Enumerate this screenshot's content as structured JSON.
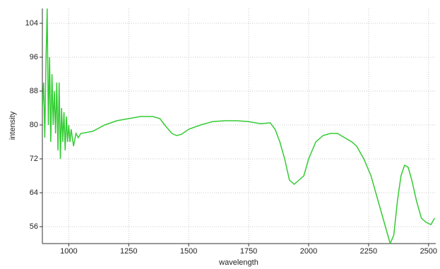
{
  "chart_data": {
    "type": "line",
    "x_label": "wavelength",
    "y_label": "intensity",
    "color": "#33cc33",
    "grid": true,
    "xlim": [
      890,
      2530
    ],
    "ylim": [
      52,
      107.5
    ],
    "xticks": [
      1000,
      1250,
      1500,
      1750,
      2000,
      2250,
      2500
    ],
    "yticks": [
      56,
      64,
      72,
      80,
      88,
      96,
      104
    ],
    "x": [
      890,
      895,
      900,
      905,
      910,
      915,
      920,
      925,
      930,
      935,
      940,
      945,
      950,
      955,
      960,
      965,
      970,
      975,
      980,
      985,
      990,
      995,
      1000,
      1005,
      1010,
      1020,
      1030,
      1040,
      1050,
      1100,
      1150,
      1200,
      1250,
      1300,
      1350,
      1380,
      1400,
      1430,
      1450,
      1470,
      1500,
      1550,
      1600,
      1650,
      1700,
      1750,
      1800,
      1840,
      1860,
      1880,
      1900,
      1920,
      1940,
      1960,
      1980,
      2000,
      2030,
      2060,
      2090,
      2120,
      2150,
      2180,
      2200,
      2230,
      2260,
      2290,
      2310,
      2330,
      2340,
      2355,
      2370,
      2385,
      2400,
      2415,
      2430,
      2450,
      2470,
      2490,
      2510,
      2525
    ],
    "values": [
      84,
      90,
      77,
      95,
      107.5,
      80,
      96,
      76,
      92,
      80,
      88,
      78,
      90,
      74,
      90,
      72,
      84,
      76,
      83,
      74,
      82,
      76,
      80,
      76,
      79,
      75,
      78,
      77,
      78,
      78.5,
      80,
      81,
      81.5,
      82,
      82,
      81.5,
      80,
      78,
      77.5,
      77.8,
      79,
      80,
      80.8,
      81,
      81,
      80.8,
      80.3,
      80.5,
      79,
      76,
      72,
      67,
      66,
      67,
      68,
      72,
      76,
      77.5,
      78,
      78,
      77,
      76,
      75,
      72,
      68,
      62,
      58,
      54,
      52,
      54,
      62,
      68,
      70.5,
      70,
      67,
      62,
      58,
      57,
      56.5,
      58
    ]
  }
}
